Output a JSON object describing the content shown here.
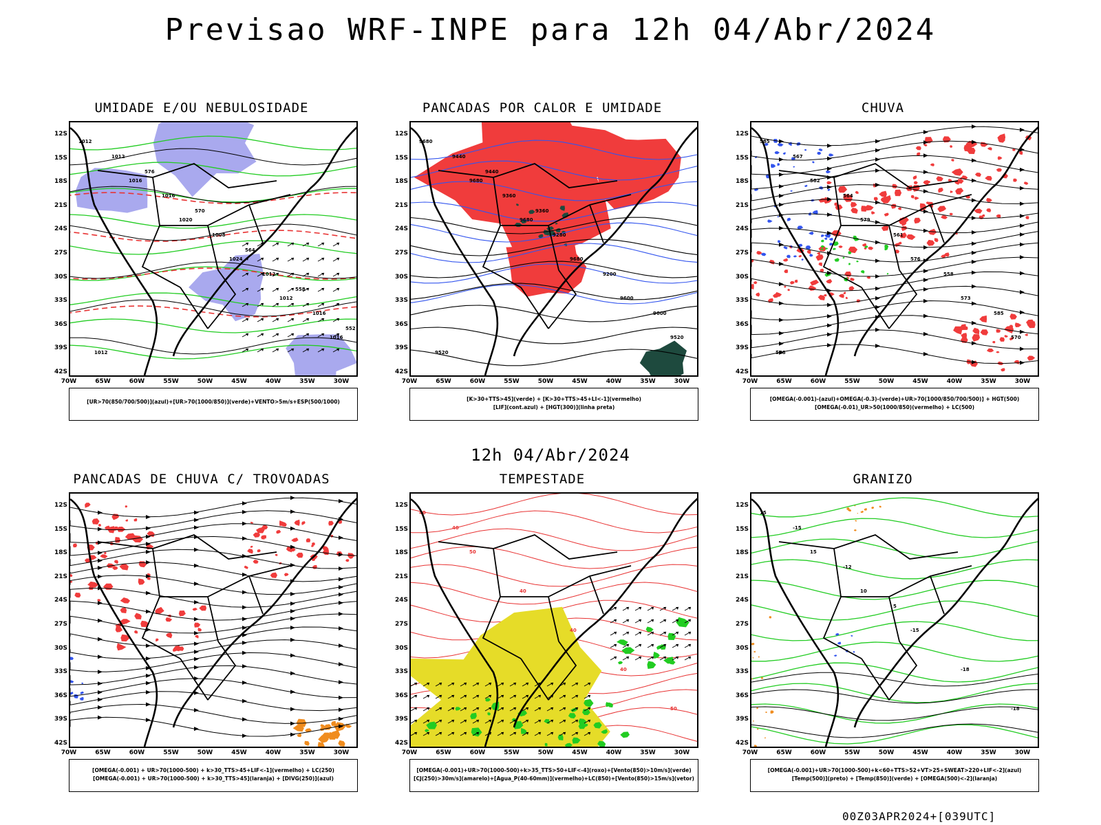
{
  "title": "Previsao WRF-INPE  para 12h 04/Abr/2024",
  "mid_title": "12h 04/Abr/2024",
  "footer": "00Z03APR2024+[039UTC]",
  "lat_labels": [
    "12S",
    "15S",
    "18S",
    "21S",
    "24S",
    "27S",
    "30S",
    "33S",
    "36S",
    "39S",
    "42S"
  ],
  "lon_labels": [
    "70W",
    "65W",
    "60W",
    "55W",
    "50W",
    "45W",
    "40W",
    "35W",
    "30W"
  ],
  "colors": {
    "humidity_mid": "#a9a9ee",
    "humidity_low": "#22cc22",
    "convective": "#f03c3c",
    "dark_green": "#1e4a3e",
    "blue": "#3355ee",
    "yellow": "#e6dc28",
    "orange": "#f08c1e",
    "contour_black": "#000000",
    "contour_red": "#e83232"
  },
  "panels": [
    {
      "title": "UMIDADE E/OU NEBULOSIDADE",
      "legend_lines": [
        "[UR>70(850/700/500)](azul)+[UR>70(1000/850)](verde)+VENTO>5m/s+ESP(500/1000)"
      ],
      "contour_labels": [
        "1012",
        "1016",
        "1020",
        "1024",
        "1012",
        "1016",
        "1012",
        "1016",
        "1008",
        "1012",
        "1016",
        "1012",
        "576",
        "570",
        "564",
        "558",
        "552"
      ]
    },
    {
      "title": "PANCADAS POR CALOR E UMIDADE",
      "legend_lines": [
        "[K>30+TTS>45](verde) + [K>30+TTS>45+LI<-1](vermelho)",
        "[LIF](cont.azul) + [HGT(300)](linha preta)"
      ],
      "contour_labels": [
        "9680",
        "9680",
        "9680",
        "9680",
        "9600",
        "9520",
        "9440",
        "9360",
        "9280",
        "9200",
        "9600",
        "9520",
        "9440",
        "9360"
      ]
    },
    {
      "title": "CHUVA",
      "legend_lines": [
        "[OMEGA(-0.001)-(azul)+OMEGA(-0.3)-(verde)+UR>70(1000/850/700/500)] + HGT(500)",
        "[OMEGA(-0.01)_UR>50(1000/850)(vermelho) + LC(500)"
      ],
      "contour_labels": [
        "585",
        "582",
        "579",
        "576",
        "573",
        "570",
        "567",
        "564",
        "561",
        "558",
        "585",
        "588"
      ]
    },
    {
      "title": "PANCADAS DE CHUVA C/ TROVOADAS",
      "legend_lines": [
        "[OMEGA(-0.001) + UR>70(1000-500) + k>30_TTS>45+LIF<-1](vermelho) + LC(250)",
        "[OMEGA(-0.001) + UR>70(1000-500) + k>30_TTS>45](laranja) + [DIVG(250)](azul)"
      ],
      "contour_labels": []
    },
    {
      "title": "TEMPESTADE",
      "legend_lines": [
        "[OMEGA(-0.001)+UR>70(1000-500)+k>35_TTS>50+LIF<-4](roxo)+[Vento(850)>10m/s](verde)",
        "[CJ(250)>30m/s](amarelo)+[Agua_P(40-60mm)](vermelho)+LC(850)+[Vento(850)>15m/s](vetor)"
      ],
      "contour_labels": [
        "40",
        "50",
        "40",
        "40",
        "40",
        "50",
        "40"
      ]
    },
    {
      "title": "GRANIZO",
      "legend_lines": [
        "[OMEGA(-0.001)+UR>70(1000-500)+k<60+TTS>52+VT>25+SWEAT>220+LIF<-2](azul)",
        "[Temp(500)](preto) + [Temp(850)](verde) + [OMEGA(500)<-2](laranja)"
      ],
      "contour_labels": [
        "15",
        "15",
        "10",
        "-15",
        "-18",
        "-18",
        "-15",
        "-12",
        "5"
      ]
    }
  ]
}
